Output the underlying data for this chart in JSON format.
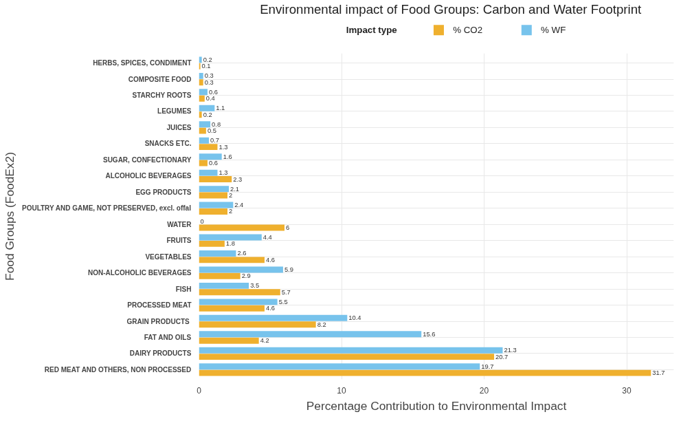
{
  "chart_data": {
    "type": "bar",
    "orientation": "horizontal",
    "title": "Environmental impact of Food Groups: Carbon and Water Footprint",
    "xlabel": "Percentage Contribution to Environmental Impact",
    "ylabel": "Food Groups (FoodEx2)",
    "legend_title": "Impact type",
    "legend": "top",
    "grid": true,
    "data_labels": true,
    "categories": [
      "HERBS, SPICES, CONDIMENT",
      "COMPOSITE FOOD",
      "STARCHY ROOTS",
      "LEGUMES",
      "JUICES",
      "SNACKS ETC.",
      "SUGAR, CONFECTIONARY",
      "ALCOHOLIC BEVERAGES",
      "EGG PRODUCTS",
      "POULTRY AND GAME, NOT PRESERVED, excl. offal",
      "WATER",
      "FRUITS",
      "VEGETABLES",
      "NON-ALCOHOLIC BEVERAGES",
      "FISH",
      "PROCESSED MEAT",
      "GRAIN  PRODUCTS",
      "FAT AND OILS",
      "DAIRY PRODUCTS",
      "RED MEAT AND OTHERS, NON PROCESSED"
    ],
    "series": [
      {
        "name": "% CO2",
        "color": "#efb02e",
        "values": [
          0.1,
          0.3,
          0.4,
          0.2,
          0.5,
          1.3,
          0.6,
          2.3,
          2,
          2,
          6,
          1.8,
          4.6,
          2.9,
          5.7,
          4.6,
          8.2,
          4.2,
          20.7,
          31.7
        ]
      },
      {
        "name": "% WF",
        "color": "#77c3ec",
        "values": [
          0.2,
          0.3,
          0.6,
          1.1,
          0.8,
          0.7,
          1.6,
          1.3,
          2.1,
          2.4,
          0,
          4.4,
          2.6,
          5.9,
          3.5,
          5.5,
          10.4,
          15.6,
          21.3,
          19.7
        ]
      }
    ],
    "xlim": [
      0,
      33.3
    ],
    "xticks": [
      0,
      10,
      20,
      30
    ]
  }
}
